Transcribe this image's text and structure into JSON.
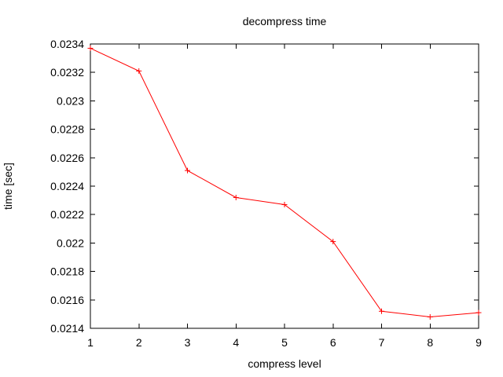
{
  "chart_data": {
    "type": "line",
    "title": "decompress time",
    "xlabel": "compress level",
    "ylabel": "time [sec]",
    "x": [
      1,
      2,
      3,
      4,
      5,
      6,
      7,
      8,
      9
    ],
    "series": [
      {
        "name": "decompress time",
        "color": "#ff0000",
        "marker": "plus",
        "values": [
          0.02337,
          0.02321,
          0.02251,
          0.02232,
          0.02227,
          0.02201,
          0.02152,
          0.02148,
          0.02151
        ]
      }
    ],
    "xlim": [
      1,
      9
    ],
    "ylim": [
      0.0214,
      0.0234
    ],
    "x_tick_labels": [
      "1",
      "2",
      "3",
      "4",
      "5",
      "6",
      "7",
      "8",
      "9"
    ],
    "y_tick_labels": [
      "0.0214",
      "0.0216",
      "0.0218",
      "0.022",
      "0.0222",
      "0.0224",
      "0.0226",
      "0.0228",
      "0.023",
      "0.0232",
      "0.0234"
    ],
    "grid": false,
    "legend_position": "none",
    "colors": {
      "background": "#ffffff",
      "frame": "#000000",
      "text": "#000000"
    }
  }
}
